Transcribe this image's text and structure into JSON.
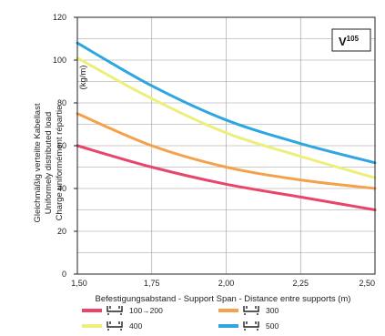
{
  "chart_data": {
    "type": "line",
    "badge": {
      "main": "V",
      "sup": "105"
    },
    "xlabel": "Befestigungsabstand - Support Span - Distance entre supports (m)",
    "ylabel_lines": [
      "Gleichmäßig verteilte Kabellast",
      "Uniformely distributed load",
      "Charge uniformément répartie"
    ],
    "y_unit": "(kg/m)",
    "xlim": [
      1.5,
      2.5
    ],
    "ylim": [
      0,
      120
    ],
    "x_ticks": [
      "1,50",
      "1,75",
      "2,00",
      "2,25",
      "2,50"
    ],
    "y_ticks": [
      "0",
      "20",
      "40",
      "60",
      "80",
      "100",
      "120"
    ],
    "grid": true,
    "legend_position": "bottom",
    "x": [
      1.5,
      1.75,
      2.0,
      2.25,
      2.5
    ],
    "series": [
      {
        "name": "100→200",
        "color": "#e8456a",
        "values": [
          60,
          50,
          42,
          36,
          30
        ]
      },
      {
        "name": "300",
        "color": "#f5a04a",
        "values": [
          75,
          60,
          50,
          44,
          40
        ]
      },
      {
        "name": "400",
        "color": "#eeee7a",
        "values": [
          101,
          82,
          66,
          55,
          45
        ]
      },
      {
        "name": "500",
        "color": "#2ea6e0",
        "values": [
          108,
          88,
          72,
          61,
          52
        ]
      }
    ]
  }
}
